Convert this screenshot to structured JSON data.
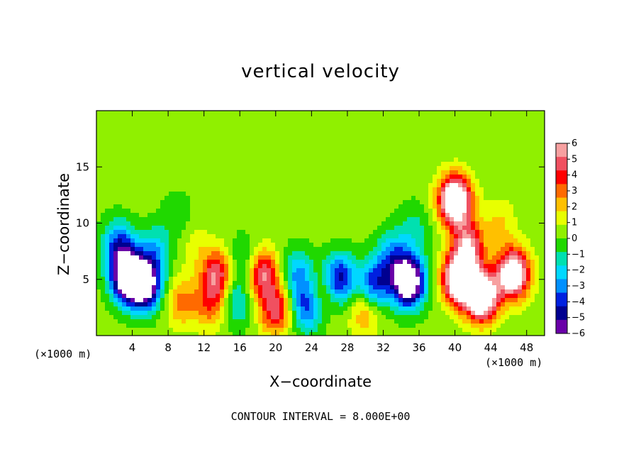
{
  "chart_data": {
    "type": "heatmap",
    "title": "vertical velocity",
    "xlabel": "X−coordinate",
    "ylabel": "Z−coordinate",
    "x_units_label": "(×1000 m)",
    "x_units_label_right": "(×1000 m)",
    "footer": "CONTOUR INTERVAL = 8.000E+00",
    "xlim": [
      0,
      50
    ],
    "ylim": [
      0,
      20
    ],
    "x_ticks": [
      4,
      8,
      12,
      16,
      20,
      24,
      28,
      32,
      36,
      40,
      44,
      48
    ],
    "x_tick_labels": [
      "4",
      "8",
      "12",
      "16",
      "20",
      "24",
      "28",
      "32",
      "36",
      "40",
      "44",
      "48"
    ],
    "y_ticks": [
      5,
      10,
      15
    ],
    "y_tick_labels": [
      "5",
      "10",
      "15"
    ],
    "colorbar": {
      "min": -6,
      "max": 6,
      "labels": [
        "6",
        "5",
        "4",
        "3",
        "2",
        "1",
        "0",
        "−1",
        "−2",
        "−3",
        "−4",
        "−5",
        "−6"
      ],
      "colors": [
        "#f7a0a0",
        "#f05060",
        "#ff0000",
        "#ff6a00",
        "#ffc000",
        "#e8ff00",
        "#90f000",
        "#20d800",
        "#00e0b0",
        "#00d8ff",
        "#0090ff",
        "#0020e0",
        "#000090",
        "#6a00a8"
      ]
    },
    "features": [
      {
        "x": 3.5,
        "z": 5.2,
        "w": -9
      },
      {
        "x": 5.5,
        "z": 4.5,
        "w": -7
      },
      {
        "x": 2.5,
        "z": 8.0,
        "w": -4
      },
      {
        "x": 6.5,
        "z": 7.5,
        "w": -2.5
      },
      {
        "x": 9.5,
        "z": 3.0,
        "w": 2.5
      },
      {
        "x": 13.5,
        "z": 5.5,
        "w": 4.5
      },
      {
        "x": 12.8,
        "z": 2.8,
        "w": 3
      },
      {
        "x": 11.0,
        "z": 8.0,
        "w": 1
      },
      {
        "x": 15.5,
        "z": 3.0,
        "w": -2.5
      },
      {
        "x": 16.5,
        "z": 6.5,
        "w": -2
      },
      {
        "x": 18.5,
        "z": 5.5,
        "w": 5
      },
      {
        "x": 20.0,
        "z": 2.3,
        "w": 4.5
      },
      {
        "x": 22.5,
        "z": 5.5,
        "w": -3
      },
      {
        "x": 23.5,
        "z": 2.5,
        "w": -4
      },
      {
        "x": 25.5,
        "z": 4.0,
        "w": 2
      },
      {
        "x": 27.0,
        "z": 5.0,
        "w": -5.5
      },
      {
        "x": 30.0,
        "z": 2.2,
        "w": 2.5
      },
      {
        "x": 31.0,
        "z": 4.5,
        "w": -4.5
      },
      {
        "x": 33.0,
        "z": 7.0,
        "w": -3
      },
      {
        "x": 34.8,
        "z": 4.8,
        "w": -9
      },
      {
        "x": 35.5,
        "z": 9.5,
        "w": -1.5
      },
      {
        "x": 40.0,
        "z": 12.0,
        "w": 9
      },
      {
        "x": 40.5,
        "z": 5.0,
        "w": 9
      },
      {
        "x": 43.0,
        "z": 3.5,
        "w": 9
      },
      {
        "x": 46.5,
        "z": 5.5,
        "w": 8
      },
      {
        "x": 41.5,
        "z": 8.0,
        "w": 5
      },
      {
        "x": 45.0,
        "z": 10.0,
        "w": 1.5
      },
      {
        "x": 9.0,
        "z": 10.5,
        "w": -1
      }
    ]
  }
}
